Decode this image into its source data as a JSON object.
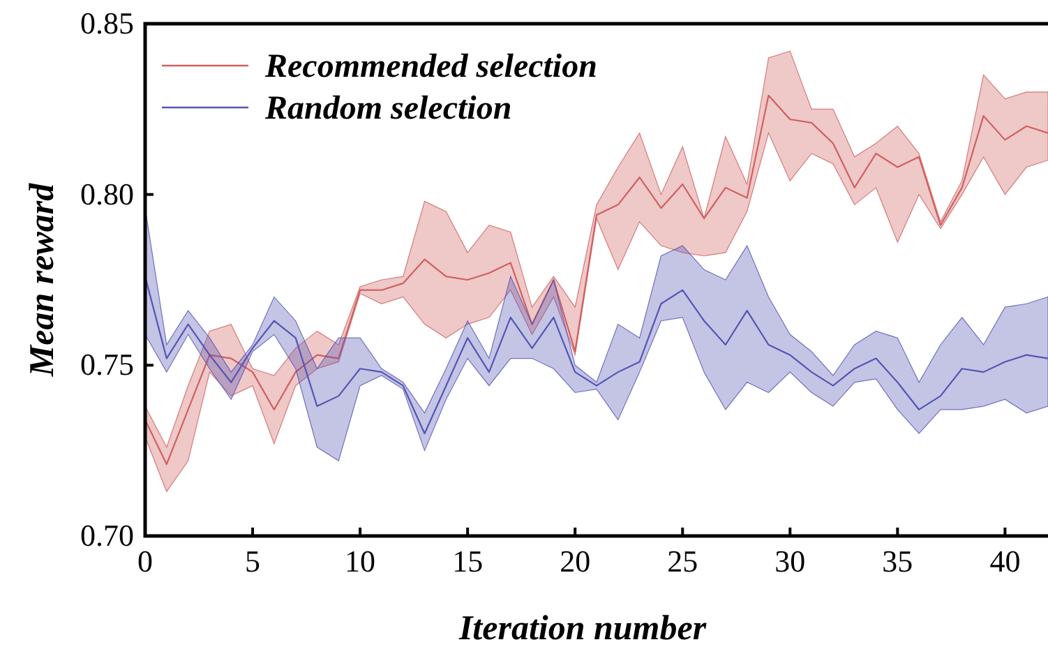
{
  "chart_data": {
    "type": "line",
    "xlabel": "Iteration number",
    "ylabel": "Mean reward",
    "x": [
      0,
      1,
      2,
      3,
      4,
      5,
      6,
      7,
      8,
      9,
      10,
      11,
      12,
      13,
      14,
      15,
      16,
      17,
      18,
      19,
      20,
      21,
      22,
      23,
      24,
      25,
      26,
      27,
      28,
      29,
      30,
      31,
      32,
      33,
      34,
      35,
      36,
      37,
      38,
      39,
      40,
      41,
      42
    ],
    "xlim": [
      0,
      42
    ],
    "xticks": [
      0,
      5,
      10,
      15,
      20,
      25,
      30,
      35,
      40
    ],
    "ylim": [
      0.7,
      0.85
    ],
    "yticks": [
      {
        "value": 0.7,
        "label": "0.70"
      },
      {
        "value": 0.75,
        "label": "0.75"
      },
      {
        "value": 0.8,
        "label": "0.80"
      },
      {
        "value": 0.85,
        "label": "0.85"
      }
    ],
    "legend": "top left",
    "grid": false,
    "marker": "none",
    "line_style": "solid",
    "series": [
      {
        "name": "Recommended selection",
        "color": "#d06060",
        "values": [
          0.734,
          0.721,
          0.737,
          0.753,
          0.752,
          0.748,
          0.737,
          0.748,
          0.753,
          0.752,
          0.772,
          0.772,
          0.774,
          0.781,
          0.776,
          0.775,
          0.777,
          0.78,
          0.762,
          0.775,
          0.754,
          0.794,
          0.797,
          0.805,
          0.796,
          0.803,
          0.793,
          0.802,
          0.799,
          0.829,
          0.822,
          0.821,
          0.815,
          0.802,
          0.812,
          0.808,
          0.811,
          0.791,
          0.802,
          0.823,
          0.816,
          0.82,
          0.818
        ],
        "lower": [
          0.729,
          0.713,
          0.722,
          0.748,
          0.741,
          0.744,
          0.727,
          0.744,
          0.749,
          0.751,
          0.771,
          0.768,
          0.77,
          0.762,
          0.758,
          0.762,
          0.764,
          0.772,
          0.759,
          0.77,
          0.753,
          0.793,
          0.778,
          0.792,
          0.785,
          0.783,
          0.782,
          0.783,
          0.795,
          0.818,
          0.804,
          0.812,
          0.809,
          0.797,
          0.802,
          0.786,
          0.8,
          0.79,
          0.8,
          0.811,
          0.8,
          0.808,
          0.81
        ],
        "upper": [
          0.738,
          0.726,
          0.744,
          0.76,
          0.762,
          0.749,
          0.747,
          0.755,
          0.76,
          0.756,
          0.773,
          0.775,
          0.776,
          0.798,
          0.795,
          0.783,
          0.791,
          0.789,
          0.767,
          0.776,
          0.767,
          0.797,
          0.808,
          0.818,
          0.8,
          0.814,
          0.793,
          0.817,
          0.803,
          0.84,
          0.842,
          0.825,
          0.825,
          0.811,
          0.815,
          0.82,
          0.812,
          0.792,
          0.804,
          0.835,
          0.828,
          0.83,
          0.83
        ]
      },
      {
        "name": "Random selection",
        "color": "#5555b5",
        "values": [
          0.776,
          0.752,
          0.762,
          0.753,
          0.745,
          0.755,
          0.763,
          0.758,
          0.738,
          0.741,
          0.749,
          0.748,
          0.744,
          0.73,
          0.744,
          0.758,
          0.748,
          0.764,
          0.755,
          0.764,
          0.748,
          0.744,
          0.748,
          0.751,
          0.768,
          0.772,
          0.763,
          0.756,
          0.766,
          0.756,
          0.753,
          0.748,
          0.744,
          0.749,
          0.752,
          0.745,
          0.737,
          0.741,
          0.749,
          0.748,
          0.751,
          0.753,
          0.752
        ],
        "lower": [
          0.759,
          0.748,
          0.759,
          0.749,
          0.74,
          0.754,
          0.759,
          0.749,
          0.726,
          0.722,
          0.744,
          0.747,
          0.743,
          0.725,
          0.74,
          0.752,
          0.744,
          0.752,
          0.752,
          0.749,
          0.742,
          0.743,
          0.734,
          0.748,
          0.763,
          0.764,
          0.748,
          0.737,
          0.745,
          0.742,
          0.748,
          0.742,
          0.738,
          0.745,
          0.746,
          0.737,
          0.73,
          0.737,
          0.737,
          0.738,
          0.74,
          0.736,
          0.738
        ],
        "upper": [
          0.796,
          0.756,
          0.766,
          0.758,
          0.748,
          0.756,
          0.77,
          0.763,
          0.749,
          0.758,
          0.758,
          0.749,
          0.745,
          0.736,
          0.749,
          0.763,
          0.752,
          0.776,
          0.762,
          0.775,
          0.75,
          0.745,
          0.762,
          0.758,
          0.782,
          0.785,
          0.778,
          0.775,
          0.785,
          0.77,
          0.759,
          0.754,
          0.747,
          0.756,
          0.76,
          0.758,
          0.745,
          0.756,
          0.764,
          0.756,
          0.767,
          0.768,
          0.77
        ]
      }
    ]
  }
}
